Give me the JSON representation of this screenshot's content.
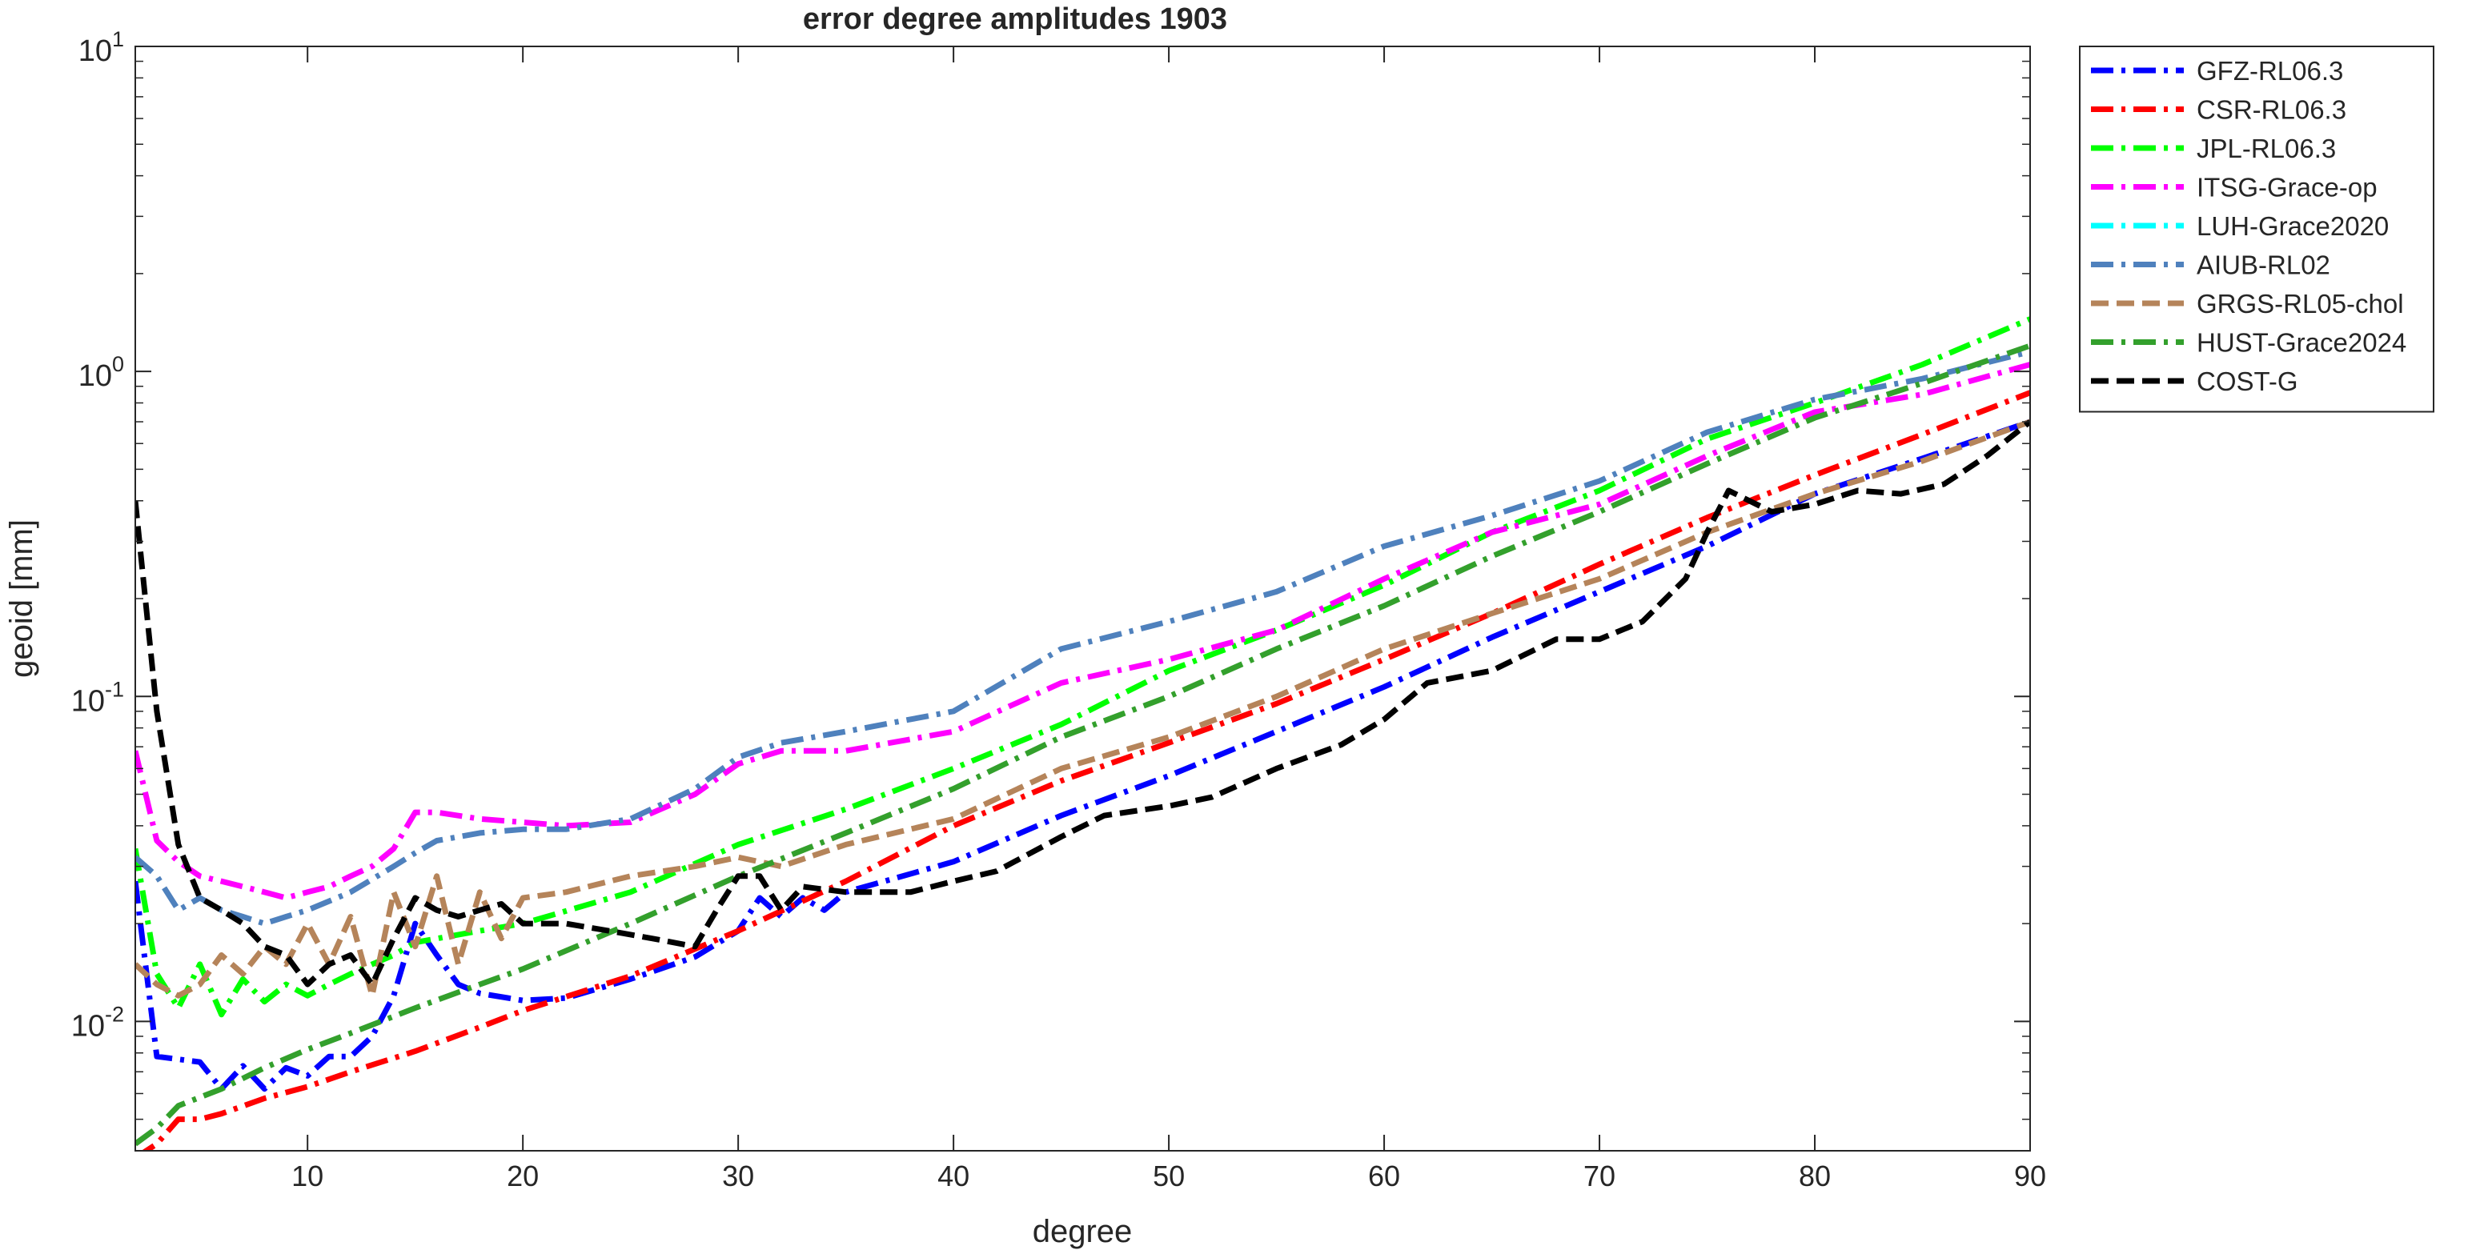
{
  "chart_data": {
    "type": "line",
    "title": "error degree amplitudes 1903",
    "xlabel": "degree",
    "ylabel": "geoid [mm]",
    "xlim": [
      2,
      90
    ],
    "ylim": [
      0.004,
      10
    ],
    "yscale": "log",
    "grid": false,
    "legend_position": "outside-top-right",
    "x_ticks": [
      10,
      20,
      30,
      40,
      50,
      60,
      70,
      80,
      90
    ],
    "y_ticks": [
      {
        "value": 0.01,
        "base": "10",
        "exp": "-2"
      },
      {
        "value": 0.1,
        "base": "10",
        "exp": "-1"
      },
      {
        "value": 1,
        "base": "10",
        "exp": "0"
      },
      {
        "value": 10,
        "base": "10",
        "exp": "1"
      }
    ],
    "series": [
      {
        "name": "GFZ-RL06.3",
        "color": "#0000ff",
        "dash": "dashdot",
        "points": [
          [
            2,
            0.027
          ],
          [
            3,
            0.0078
          ],
          [
            5,
            0.0075
          ],
          [
            6,
            0.0062
          ],
          [
            7,
            0.0073
          ],
          [
            8,
            0.0062
          ],
          [
            9,
            0.0072
          ],
          [
            10,
            0.0068
          ],
          [
            11,
            0.0078
          ],
          [
            12,
            0.0078
          ],
          [
            13,
            0.009
          ],
          [
            14,
            0.012
          ],
          [
            15,
            0.02
          ],
          [
            16,
            0.016
          ],
          [
            17,
            0.013
          ],
          [
            18,
            0.0122
          ],
          [
            20,
            0.0116
          ],
          [
            22,
            0.0118
          ],
          [
            25,
            0.0135
          ],
          [
            28,
            0.0158
          ],
          [
            30,
            0.019
          ],
          [
            31,
            0.024
          ],
          [
            32,
            0.021
          ],
          [
            33,
            0.024
          ],
          [
            34,
            0.022
          ],
          [
            35,
            0.025
          ],
          [
            40,
            0.031
          ],
          [
            45,
            0.043
          ],
          [
            50,
            0.057
          ],
          [
            55,
            0.078
          ],
          [
            60,
            0.107
          ],
          [
            65,
            0.152
          ],
          [
            70,
            0.21
          ],
          [
            75,
            0.29
          ],
          [
            80,
            0.42
          ],
          [
            85,
            0.54
          ],
          [
            90,
            0.7
          ]
        ]
      },
      {
        "name": "CSR-RL06.3",
        "color": "#ff0000",
        "dash": "dashdot",
        "points": [
          [
            2,
            0.0038
          ],
          [
            3,
            0.0042
          ],
          [
            4,
            0.005
          ],
          [
            5,
            0.005
          ],
          [
            6,
            0.0052
          ],
          [
            8,
            0.0058
          ],
          [
            10,
            0.0063
          ],
          [
            12,
            0.007
          ],
          [
            15,
            0.0081
          ],
          [
            18,
            0.0096
          ],
          [
            20,
            0.0108
          ],
          [
            25,
            0.0138
          ],
          [
            30,
            0.019
          ],
          [
            35,
            0.027
          ],
          [
            40,
            0.04
          ],
          [
            45,
            0.055
          ],
          [
            50,
            0.072
          ],
          [
            55,
            0.095
          ],
          [
            60,
            0.13
          ],
          [
            65,
            0.18
          ],
          [
            70,
            0.255
          ],
          [
            75,
            0.355
          ],
          [
            80,
            0.48
          ],
          [
            85,
            0.64
          ],
          [
            90,
            0.86
          ]
        ]
      },
      {
        "name": "JPL-RL06.3",
        "color": "#00ff00",
        "dash": "dashdot",
        "points": [
          [
            2,
            0.034
          ],
          [
            3,
            0.014
          ],
          [
            4,
            0.011
          ],
          [
            5,
            0.015
          ],
          [
            6,
            0.0105
          ],
          [
            7,
            0.0135
          ],
          [
            8,
            0.0115
          ],
          [
            9,
            0.013
          ],
          [
            10,
            0.012
          ],
          [
            11,
            0.013
          ],
          [
            12,
            0.014
          ],
          [
            13,
            0.015
          ],
          [
            14,
            0.016
          ],
          [
            15,
            0.0175
          ],
          [
            18,
            0.019
          ],
          [
            20,
            0.02
          ],
          [
            25,
            0.025
          ],
          [
            30,
            0.035
          ],
          [
            35,
            0.045
          ],
          [
            40,
            0.06
          ],
          [
            45,
            0.082
          ],
          [
            50,
            0.12
          ],
          [
            55,
            0.16
          ],
          [
            60,
            0.22
          ],
          [
            65,
            0.32
          ],
          [
            70,
            0.43
          ],
          [
            75,
            0.62
          ],
          [
            80,
            0.8
          ],
          [
            85,
            1.05
          ],
          [
            90,
            1.45
          ]
        ]
      },
      {
        "name": "ITSG-Grace-op",
        "color": "#ff00ff",
        "dash": "dashdot",
        "points": [
          [
            2,
            0.068
          ],
          [
            3,
            0.036
          ],
          [
            4,
            0.031
          ],
          [
            5,
            0.028
          ],
          [
            6,
            0.027
          ],
          [
            7,
            0.026
          ],
          [
            8,
            0.025
          ],
          [
            9,
            0.024
          ],
          [
            10,
            0.025
          ],
          [
            11,
            0.026
          ],
          [
            12,
            0.028
          ],
          [
            13,
            0.03
          ],
          [
            14,
            0.034
          ],
          [
            15,
            0.044
          ],
          [
            16,
            0.044
          ],
          [
            18,
            0.042
          ],
          [
            20,
            0.041
          ],
          [
            22,
            0.04
          ],
          [
            25,
            0.041
          ],
          [
            28,
            0.05
          ],
          [
            30,
            0.062
          ],
          [
            32,
            0.068
          ],
          [
            35,
            0.068
          ],
          [
            40,
            0.078
          ],
          [
            45,
            0.11
          ],
          [
            50,
            0.13
          ],
          [
            55,
            0.16
          ],
          [
            60,
            0.23
          ],
          [
            65,
            0.32
          ],
          [
            70,
            0.39
          ],
          [
            75,
            0.55
          ],
          [
            80,
            0.75
          ],
          [
            85,
            0.85
          ],
          [
            90,
            1.05
          ]
        ]
      },
      {
        "name": "LUH-Grace2020",
        "color": "#00ffff",
        "dash": "dashdot",
        "points": []
      },
      {
        "name": "AIUB-RL02",
        "color": "#4f81bd",
        "dash": "dashdot",
        "points": [
          [
            2,
            0.032
          ],
          [
            3,
            0.028
          ],
          [
            4,
            0.022
          ],
          [
            5,
            0.024
          ],
          [
            6,
            0.022
          ],
          [
            7,
            0.021
          ],
          [
            8,
            0.02
          ],
          [
            9,
            0.021
          ],
          [
            10,
            0.022
          ],
          [
            12,
            0.025
          ],
          [
            14,
            0.03
          ],
          [
            15,
            0.033
          ],
          [
            16,
            0.036
          ],
          [
            18,
            0.038
          ],
          [
            20,
            0.039
          ],
          [
            22,
            0.039
          ],
          [
            25,
            0.042
          ],
          [
            28,
            0.052
          ],
          [
            30,
            0.065
          ],
          [
            32,
            0.072
          ],
          [
            35,
            0.078
          ],
          [
            40,
            0.09
          ],
          [
            45,
            0.14
          ],
          [
            50,
            0.17
          ],
          [
            55,
            0.21
          ],
          [
            60,
            0.29
          ],
          [
            65,
            0.36
          ],
          [
            70,
            0.46
          ],
          [
            75,
            0.65
          ],
          [
            80,
            0.82
          ],
          [
            85,
            0.95
          ],
          [
            90,
            1.15
          ]
        ]
      },
      {
        "name": "GRGS-RL05-chol",
        "color": "#b5845a",
        "dash": "dash",
        "points": [
          [
            2,
            0.015
          ],
          [
            3,
            0.013
          ],
          [
            4,
            0.012
          ],
          [
            5,
            0.013
          ],
          [
            6,
            0.016
          ],
          [
            7,
            0.014
          ],
          [
            8,
            0.017
          ],
          [
            9,
            0.015
          ],
          [
            10,
            0.02
          ],
          [
            11,
            0.015
          ],
          [
            12,
            0.021
          ],
          [
            13,
            0.012
          ],
          [
            14,
            0.025
          ],
          [
            15,
            0.017
          ],
          [
            16,
            0.028
          ],
          [
            17,
            0.015
          ],
          [
            18,
            0.025
          ],
          [
            19,
            0.018
          ],
          [
            20,
            0.024
          ],
          [
            22,
            0.025
          ],
          [
            25,
            0.028
          ],
          [
            28,
            0.03
          ],
          [
            30,
            0.032
          ],
          [
            32,
            0.03
          ],
          [
            35,
            0.035
          ],
          [
            40,
            0.042
          ],
          [
            45,
            0.06
          ],
          [
            50,
            0.075
          ],
          [
            55,
            0.1
          ],
          [
            60,
            0.14
          ],
          [
            65,
            0.18
          ],
          [
            70,
            0.23
          ],
          [
            75,
            0.32
          ],
          [
            80,
            0.42
          ],
          [
            85,
            0.53
          ],
          [
            90,
            0.7
          ]
        ]
      },
      {
        "name": "HUST-Grace2024",
        "color": "#33a02c",
        "dash": "dashdot",
        "points": [
          [
            2,
            0.0042
          ],
          [
            3,
            0.0047
          ],
          [
            4,
            0.0055
          ],
          [
            6,
            0.0062
          ],
          [
            8,
            0.0072
          ],
          [
            10,
            0.0082
          ],
          [
            12,
            0.0092
          ],
          [
            15,
            0.011
          ],
          [
            18,
            0.013
          ],
          [
            20,
            0.0145
          ],
          [
            25,
            0.02
          ],
          [
            30,
            0.028
          ],
          [
            35,
            0.038
          ],
          [
            40,
            0.052
          ],
          [
            45,
            0.075
          ],
          [
            50,
            0.1
          ],
          [
            55,
            0.14
          ],
          [
            60,
            0.19
          ],
          [
            65,
            0.27
          ],
          [
            70,
            0.37
          ],
          [
            75,
            0.52
          ],
          [
            80,
            0.72
          ],
          [
            85,
            0.92
          ],
          [
            90,
            1.2
          ]
        ]
      },
      {
        "name": "COST-G",
        "color": "#000000",
        "dash": "dash",
        "points": [
          [
            2,
            0.4
          ],
          [
            3,
            0.09
          ],
          [
            4,
            0.035
          ],
          [
            5,
            0.024
          ],
          [
            6,
            0.022
          ],
          [
            7,
            0.02
          ],
          [
            8,
            0.017
          ],
          [
            9,
            0.016
          ],
          [
            10,
            0.013
          ],
          [
            11,
            0.015
          ],
          [
            12,
            0.016
          ],
          [
            13,
            0.013
          ],
          [
            14,
            0.018
          ],
          [
            15,
            0.024
          ],
          [
            16,
            0.022
          ],
          [
            17,
            0.021
          ],
          [
            18,
            0.022
          ],
          [
            19,
            0.023
          ],
          [
            20,
            0.02
          ],
          [
            22,
            0.02
          ],
          [
            24,
            0.019
          ],
          [
            26,
            0.018
          ],
          [
            28,
            0.017
          ],
          [
            29,
            0.022
          ],
          [
            30,
            0.028
          ],
          [
            31,
            0.028
          ],
          [
            32,
            0.022
          ],
          [
            33,
            0.026
          ],
          [
            35,
            0.025
          ],
          [
            38,
            0.025
          ],
          [
            40,
            0.027
          ],
          [
            42,
            0.029
          ],
          [
            45,
            0.037
          ],
          [
            47,
            0.043
          ],
          [
            50,
            0.046
          ],
          [
            52,
            0.049
          ],
          [
            55,
            0.06
          ],
          [
            58,
            0.071
          ],
          [
            60,
            0.085
          ],
          [
            62,
            0.11
          ],
          [
            65,
            0.12
          ],
          [
            68,
            0.15
          ],
          [
            70,
            0.15
          ],
          [
            72,
            0.17
          ],
          [
            74,
            0.23
          ],
          [
            75,
            0.32
          ],
          [
            76,
            0.43
          ],
          [
            78,
            0.37
          ],
          [
            80,
            0.39
          ],
          [
            82,
            0.43
          ],
          [
            84,
            0.42
          ],
          [
            86,
            0.45
          ],
          [
            88,
            0.55
          ],
          [
            90,
            0.7
          ]
        ]
      }
    ]
  }
}
